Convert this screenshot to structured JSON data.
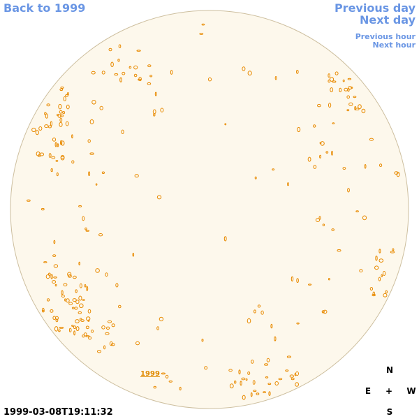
{
  "nav": {
    "back_to_year": "Back to 1999",
    "previous_day": "Previous day",
    "next_day": "Next day",
    "previous_hour": "Previous hour",
    "next_hour": "Next hour"
  },
  "disk_label": "1999",
  "timestamp": "1999-03-08T19:11:32",
  "compass": {
    "north": "N",
    "east": "E",
    "center": "+",
    "west": "W",
    "south": "S"
  }
}
